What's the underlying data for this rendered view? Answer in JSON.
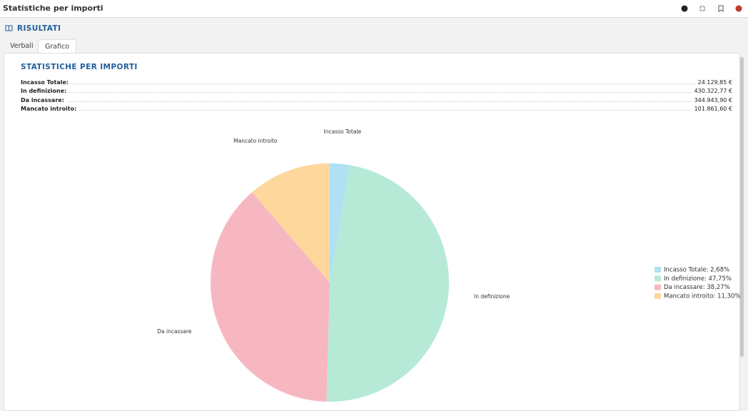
{
  "header": {
    "title": "Statistiche per importi"
  },
  "section": {
    "title": "RISULTATI"
  },
  "tabs": [
    "Verbali",
    "Grafico"
  ],
  "stats": {
    "title": "STATISTICHE PER IMPORTI",
    "rows": [
      [
        "Incasso Totale:",
        "24.129,85 €"
      ],
      [
        "In definizione:",
        "430.322,77 €"
      ],
      [
        "Da incassare:",
        "344.943,90 €"
      ],
      [
        "Mancato introito:",
        "101.861,60 €"
      ]
    ]
  },
  "chart_data": {
    "type": "pie",
    "categories": [
      "Incasso Totale",
      "In definizione",
      "Da incassare",
      "Mancato introito"
    ],
    "values": [
      2.68,
      47.75,
      38.27,
      11.3
    ],
    "value_labels": [
      "Incasso Totale: 2,68%",
      "In definizione: 47,75%",
      "Da incassare: 38,27%",
      "Mancato introito: 11,30%"
    ],
    "colors": [
      "#afe0f3",
      "#b6ead7",
      "#f7b7c1",
      "#fdd79c"
    ],
    "legend": "right"
  }
}
